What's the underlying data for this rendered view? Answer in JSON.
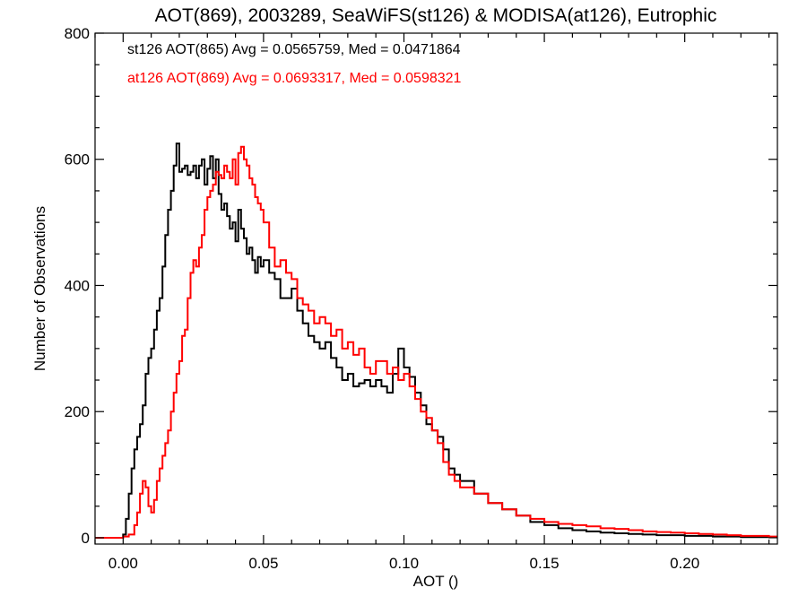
{
  "chart_data": {
    "type": "line",
    "title": "AOT(869), 2003289, SeaWiFS(st126) & MODISA(at126), Eutrophic",
    "xlabel": "AOT ()",
    "ylabel": "Number of Observations",
    "xlim": [
      -0.01,
      0.233
    ],
    "ylim": [
      -10,
      800
    ],
    "xticks": [
      0.0,
      0.05,
      0.1,
      0.15,
      0.2
    ],
    "xtick_labels": [
      "0.00",
      "0.05",
      "0.10",
      "0.15",
      "0.20"
    ],
    "yticks": [
      0,
      200,
      400,
      600,
      800
    ],
    "ytick_labels": [
      "0",
      "200",
      "400",
      "600",
      "800"
    ],
    "step": true,
    "grid": false,
    "annotations": [
      {
        "text": "st126 AOT(865) Avg = 0.0565759, Med = 0.0471864",
        "color": "#000000"
      },
      {
        "text": "at126 AOT(869) Avg = 0.0693317, Med = 0.0598321",
        "color": "#ff0000"
      }
    ],
    "series": [
      {
        "name": "st126",
        "color": "#000000",
        "x": [
          -0.01,
          -0.005,
          0.0,
          0.001,
          0.002,
          0.003,
          0.004,
          0.005,
          0.006,
          0.007,
          0.008,
          0.009,
          0.01,
          0.011,
          0.012,
          0.013,
          0.014,
          0.015,
          0.016,
          0.017,
          0.018,
          0.019,
          0.02,
          0.021,
          0.022,
          0.023,
          0.024,
          0.025,
          0.026,
          0.027,
          0.028,
          0.029,
          0.03,
          0.031,
          0.032,
          0.033,
          0.034,
          0.035,
          0.036,
          0.037,
          0.038,
          0.039,
          0.04,
          0.041,
          0.042,
          0.043,
          0.044,
          0.045,
          0.046,
          0.047,
          0.048,
          0.049,
          0.05,
          0.052,
          0.054,
          0.056,
          0.058,
          0.06,
          0.062,
          0.064,
          0.066,
          0.068,
          0.07,
          0.072,
          0.074,
          0.076,
          0.078,
          0.08,
          0.082,
          0.084,
          0.086,
          0.088,
          0.09,
          0.092,
          0.094,
          0.096,
          0.098,
          0.1,
          0.102,
          0.104,
          0.106,
          0.108,
          0.11,
          0.112,
          0.114,
          0.116,
          0.118,
          0.12,
          0.125,
          0.13,
          0.135,
          0.14,
          0.145,
          0.15,
          0.155,
          0.16,
          0.165,
          0.17,
          0.175,
          0.18,
          0.185,
          0.19,
          0.195,
          0.2,
          0.205,
          0.21,
          0.215,
          0.22,
          0.225,
          0.23,
          0.233
        ],
        "values": [
          0,
          0,
          5,
          30,
          70,
          110,
          140,
          160,
          180,
          210,
          260,
          285,
          300,
          330,
          360,
          380,
          430,
          480,
          520,
          550,
          590,
          625,
          580,
          585,
          590,
          575,
          580,
          590,
          570,
          590,
          600,
          560,
          585,
          605,
          570,
          600,
          545,
          520,
          530,
          510,
          490,
          500,
          470,
          520,
          490,
          475,
          450,
          460,
          440,
          420,
          445,
          430,
          440,
          420,
          410,
          380,
          380,
          395,
          360,
          340,
          320,
          310,
          300,
          310,
          285,
          270,
          250,
          260,
          240,
          245,
          250,
          240,
          250,
          240,
          230,
          260,
          300,
          270,
          255,
          230,
          210,
          180,
          170,
          160,
          140,
          110,
          100,
          90,
          70,
          55,
          45,
          35,
          25,
          20,
          15,
          12,
          10,
          8,
          7,
          6,
          5,
          4,
          4,
          3,
          3,
          2,
          2,
          1,
          1,
          1,
          1
        ]
      },
      {
        "name": "at126",
        "color": "#ff0000",
        "x": [
          -0.01,
          -0.005,
          0.0,
          0.002,
          0.004,
          0.005,
          0.006,
          0.007,
          0.008,
          0.009,
          0.01,
          0.011,
          0.012,
          0.013,
          0.014,
          0.015,
          0.016,
          0.017,
          0.018,
          0.019,
          0.02,
          0.021,
          0.022,
          0.023,
          0.024,
          0.025,
          0.026,
          0.027,
          0.028,
          0.029,
          0.03,
          0.031,
          0.032,
          0.033,
          0.034,
          0.035,
          0.036,
          0.037,
          0.038,
          0.039,
          0.04,
          0.041,
          0.042,
          0.043,
          0.044,
          0.045,
          0.046,
          0.047,
          0.048,
          0.049,
          0.05,
          0.052,
          0.054,
          0.056,
          0.058,
          0.06,
          0.062,
          0.064,
          0.066,
          0.068,
          0.07,
          0.072,
          0.074,
          0.076,
          0.078,
          0.08,
          0.082,
          0.084,
          0.086,
          0.088,
          0.09,
          0.092,
          0.094,
          0.096,
          0.098,
          0.1,
          0.102,
          0.104,
          0.106,
          0.108,
          0.11,
          0.112,
          0.114,
          0.116,
          0.118,
          0.12,
          0.125,
          0.13,
          0.135,
          0.14,
          0.145,
          0.15,
          0.155,
          0.16,
          0.165,
          0.17,
          0.175,
          0.18,
          0.185,
          0.19,
          0.195,
          0.2,
          0.205,
          0.21,
          0.215,
          0.22,
          0.225,
          0.23,
          0.233
        ],
        "values": [
          0,
          0,
          2,
          5,
          20,
          40,
          70,
          90,
          80,
          50,
          40,
          60,
          90,
          110,
          130,
          150,
          170,
          200,
          230,
          260,
          280,
          320,
          330,
          380,
          420,
          440,
          430,
          460,
          480,
          520,
          540,
          550,
          560,
          580,
          575,
          570,
          590,
          580,
          570,
          600,
          560,
          610,
          620,
          600,
          590,
          570,
          560,
          540,
          530,
          520,
          500,
          460,
          430,
          440,
          420,
          410,
          380,
          370,
          360,
          340,
          350,
          340,
          320,
          330,
          300,
          310,
          290,
          300,
          270,
          260,
          280,
          280,
          260,
          270,
          250,
          260,
          240,
          220,
          200,
          190,
          170,
          150,
          120,
          100,
          90,
          80,
          70,
          55,
          45,
          35,
          30,
          25,
          22,
          20,
          18,
          15,
          14,
          12,
          10,
          9,
          8,
          7,
          6,
          5,
          4,
          3,
          3,
          2,
          2
        ]
      }
    ]
  }
}
